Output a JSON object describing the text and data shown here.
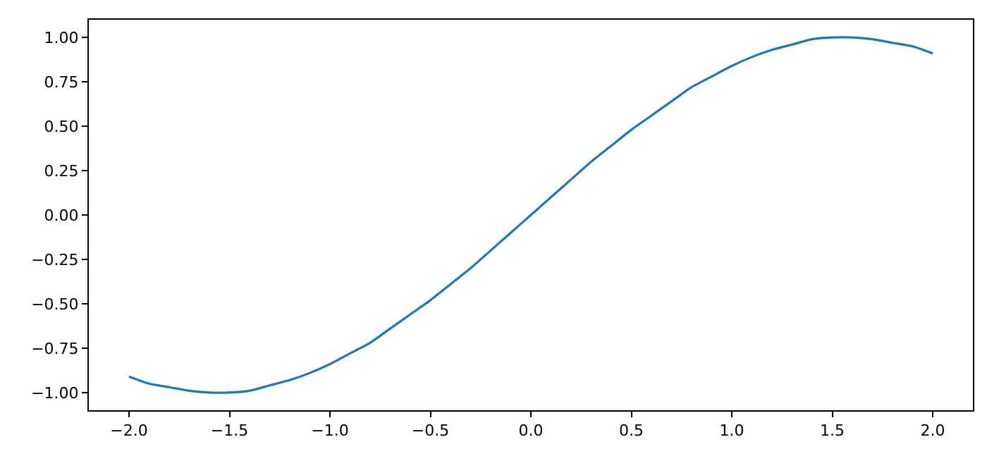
{
  "chart_data": {
    "type": "line",
    "x": [
      -2.0,
      -1.9,
      -1.8,
      -1.7,
      -1.6,
      -1.5,
      -1.4,
      -1.3,
      -1.2,
      -1.1,
      -1.0,
      -0.9,
      -0.8,
      -0.7,
      -0.6,
      -0.5,
      -0.4,
      -0.3,
      -0.2,
      -0.1,
      0,
      0.1,
      0.2,
      0.3,
      0.4,
      0.5,
      0.6,
      0.7,
      0.8,
      0.9,
      1.0,
      1.1,
      1.2,
      1.3,
      1.4,
      1.5,
      1.6,
      1.7,
      1.8,
      1.9,
      2.0
    ],
    "series": [
      {
        "color": "#1f77b4",
        "values": [
          -0.91,
          -0.95,
          -0.97,
          -0.99,
          -1.0,
          -1.0,
          -0.99,
          -0.96,
          -0.93,
          -0.89,
          -0.84,
          -0.78,
          -0.72,
          -0.64,
          -0.56,
          -0.48,
          -0.39,
          -0.3,
          -0.2,
          -0.1,
          0,
          0.1,
          0.2,
          0.3,
          0.39,
          0.48,
          0.56,
          0.64,
          0.72,
          0.78,
          0.84,
          0.89,
          0.93,
          0.96,
          0.99,
          1.0,
          1.0,
          0.99,
          0.97,
          0.95,
          0.91
        ]
      }
    ],
    "xlim": [
      -2.2,
      2.2
    ],
    "xticks": [
      {
        "value": -2,
        "label": "−2.0"
      },
      {
        "value": -1.5,
        "label": "−1.5"
      },
      {
        "value": -1,
        "label": "−1.0"
      },
      {
        "value": -0.5,
        "label": "−0.5"
      },
      {
        "value": 0,
        "label": "0.0"
      },
      {
        "value": 0.5,
        "label": "0.5"
      },
      {
        "value": 1,
        "label": "1.0"
      },
      {
        "value": 1.5,
        "label": "1.5"
      },
      {
        "value": 2,
        "label": "2.0"
      }
    ],
    "ylim": [
      -1.1,
      1.1
    ],
    "yticks": [
      {
        "value": -1,
        "label": "−1.00"
      },
      {
        "value": -0.75,
        "label": "−0.75"
      },
      {
        "value": -0.5,
        "label": "−0.50"
      },
      {
        "value": -0.25,
        "label": "−0.25"
      },
      {
        "value": 0,
        "label": "0.00"
      },
      {
        "value": 0.25,
        "label": "0.25"
      },
      {
        "value": 0.5,
        "label": "0.50"
      },
      {
        "value": 0.75,
        "label": "0.75"
      },
      {
        "value": 1,
        "label": "1.00"
      }
    ],
    "grid": false,
    "marker": "none",
    "line_style": "solid"
  }
}
